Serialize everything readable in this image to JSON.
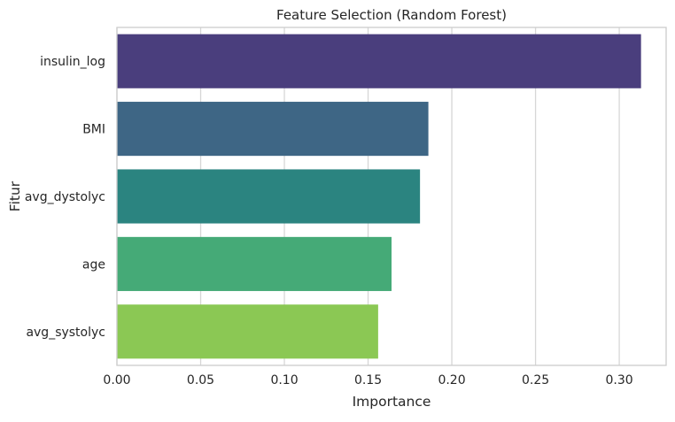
{
  "chart_data": {
    "type": "bar",
    "orientation": "horizontal",
    "title": "Feature Selection (Random Forest)",
    "xlabel": "Importance",
    "ylabel": "Fitur",
    "categories": [
      "insulin_log",
      "BMI",
      "avg_dystolyc",
      "age",
      "avg_systolyc"
    ],
    "values": [
      0.313,
      0.186,
      0.181,
      0.164,
      0.156
    ],
    "colors": [
      "#4a3e7d",
      "#3e6685",
      "#2b8480",
      "#45aa77",
      "#8bc854"
    ],
    "xlim": [
      0,
      0.328
    ],
    "xticks": [
      0.0,
      0.05,
      0.1,
      0.15,
      0.2,
      0.25,
      0.3
    ],
    "xtick_labels": [
      "0.00",
      "0.05",
      "0.10",
      "0.15",
      "0.20",
      "0.25",
      "0.30"
    ],
    "grid": "vertical",
    "legend": "none"
  }
}
